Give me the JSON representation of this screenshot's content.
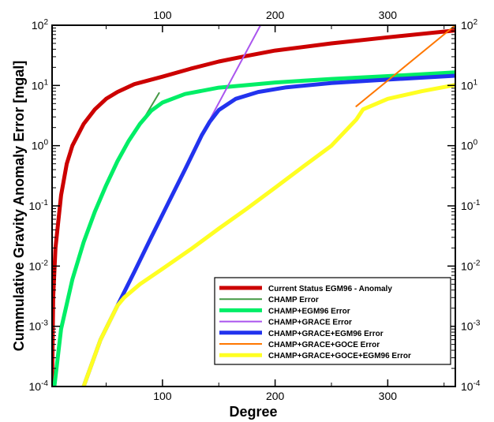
{
  "chart_data": {
    "type": "line",
    "title": "",
    "xlabel": "Degree",
    "ylabel": "Cummulative Gravity Anomaly Error [mgal]",
    "xlim": [
      2,
      360
    ],
    "ylim": [
      0.0001,
      100
    ],
    "yscale": "log",
    "grid": false,
    "legend_position": "bottom-right",
    "x_ticks": [
      100,
      200,
      300
    ],
    "x_tick_labels": [
      "100",
      "200",
      "300"
    ],
    "y_ticks": [
      0.0001,
      0.001,
      0.01,
      0.1,
      1,
      10,
      100
    ],
    "y_tick_labels": [
      {
        "base": "10",
        "exp": "-4"
      },
      {
        "base": "10",
        "exp": "-3"
      },
      {
        "base": "10",
        "exp": "-2"
      },
      {
        "base": "10",
        "exp": "-1"
      },
      {
        "base": "10",
        "exp": "0"
      },
      {
        "base": "10",
        "exp": "1"
      },
      {
        "base": "10",
        "exp": "2"
      }
    ],
    "series": [
      {
        "name": "Current Status EGM96 - Anomaly",
        "color": "#cc0000",
        "width": 5,
        "points": [
          [
            2,
            0.0001
          ],
          [
            3,
            0.003
          ],
          [
            5,
            0.02
          ],
          [
            10,
            0.15
          ],
          [
            15,
            0.5
          ],
          [
            20,
            1.0
          ],
          [
            30,
            2.3
          ],
          [
            40,
            4.0
          ],
          [
            50,
            6.0
          ],
          [
            60,
            7.8
          ],
          [
            75,
            10.5
          ],
          [
            100,
            14.0
          ],
          [
            125,
            19.0
          ],
          [
            150,
            25.0
          ],
          [
            175,
            31.0
          ],
          [
            200,
            38.0
          ],
          [
            250,
            50.0
          ],
          [
            300,
            63.0
          ],
          [
            360,
            82.0
          ]
        ]
      },
      {
        "name": "CHAMP Error",
        "color": "#449944",
        "width": 2,
        "points": [
          [
            80,
            2.2
          ],
          [
            97,
            7.5
          ]
        ]
      },
      {
        "name": "CHAMP+EGM96 Error",
        "color": "#00ee66",
        "width": 5,
        "points": [
          [
            4,
            0.0001
          ],
          [
            10,
            0.0009
          ],
          [
            20,
            0.006
          ],
          [
            30,
            0.025
          ],
          [
            40,
            0.08
          ],
          [
            50,
            0.22
          ],
          [
            60,
            0.55
          ],
          [
            70,
            1.2
          ],
          [
            80,
            2.3
          ],
          [
            90,
            3.8
          ],
          [
            100,
            5.2
          ],
          [
            120,
            7.2
          ],
          [
            150,
            9.2
          ],
          [
            200,
            11.2
          ],
          [
            250,
            12.8
          ],
          [
            300,
            14.3
          ],
          [
            360,
            16.5
          ]
        ]
      },
      {
        "name": "CHAMP+GRACE Error",
        "color": "#aa55ee",
        "width": 2,
        "points": [
          [
            140,
            2.3
          ],
          [
            187,
            100.0
          ]
        ]
      },
      {
        "name": "CHAMP+GRACE+EGM96 Error",
        "color": "#2233ee",
        "width": 5,
        "points": [
          [
            30,
            0.0001
          ],
          [
            45,
            0.0006
          ],
          [
            60,
            0.0022
          ],
          [
            75,
            0.008
          ],
          [
            90,
            0.03
          ],
          [
            105,
            0.11
          ],
          [
            120,
            0.4
          ],
          [
            135,
            1.5
          ],
          [
            142,
            2.5
          ],
          [
            150,
            3.9
          ],
          [
            165,
            6.0
          ],
          [
            185,
            7.8
          ],
          [
            210,
            9.3
          ],
          [
            250,
            11.0
          ],
          [
            300,
            12.5
          ],
          [
            360,
            14.5
          ]
        ]
      },
      {
        "name": "CHAMP+GRACE+GOCE Error",
        "color": "#ff7700",
        "width": 2,
        "points": [
          [
            272,
            4.5
          ],
          [
            360,
            100.0
          ]
        ]
      },
      {
        "name": "CHAMP+GRACE+GOCE+EGM96 Error",
        "color": "#ffff22",
        "width": 5,
        "points": [
          [
            30,
            0.0001
          ],
          [
            45,
            0.0006
          ],
          [
            60,
            0.0022
          ],
          [
            66,
            0.003
          ],
          [
            80,
            0.005
          ],
          [
            100,
            0.009
          ],
          [
            125,
            0.019
          ],
          [
            150,
            0.042
          ],
          [
            175,
            0.09
          ],
          [
            200,
            0.2
          ],
          [
            225,
            0.45
          ],
          [
            250,
            1.0
          ],
          [
            272,
            2.7
          ],
          [
            278,
            4.0
          ],
          [
            300,
            6.0
          ],
          [
            330,
            8.0
          ],
          [
            360,
            10.2
          ]
        ]
      }
    ]
  }
}
